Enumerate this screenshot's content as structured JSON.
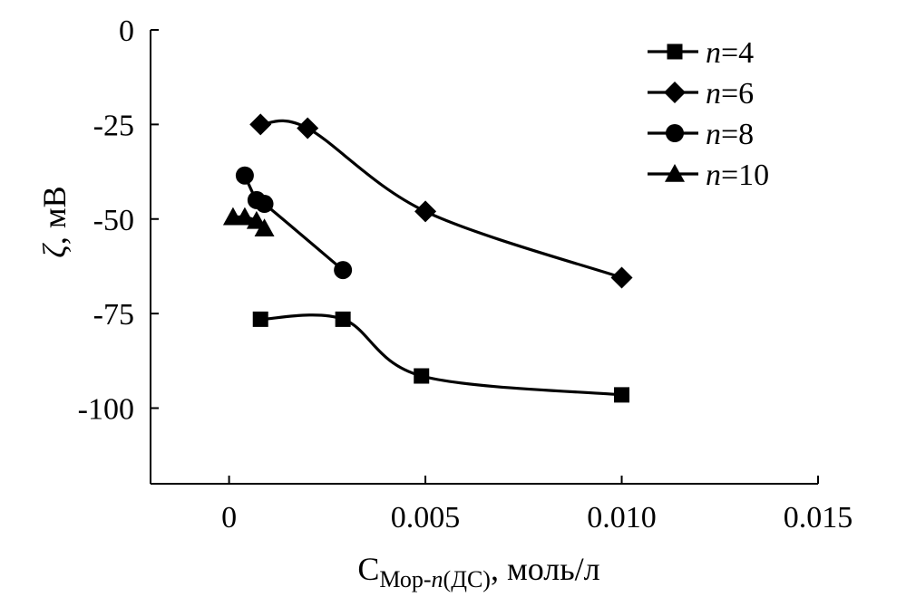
{
  "chart_data": {
    "type": "scatter",
    "title": "",
    "xlabel": {
      "main": "C",
      "sub": "Мор-",
      "sub_italic": "n",
      "sub_end": "(ДС)",
      "rest": ", моль/л"
    },
    "ylabel": {
      "symbol": "ζ",
      "rest": ", мВ"
    },
    "xlim": [
      -0.002,
      0.015
    ],
    "ylim": [
      -120,
      0
    ],
    "x_ticks": [
      0,
      0.005,
      0.01,
      0.015
    ],
    "x_tick_labels": [
      "0",
      "0.005",
      "0.010",
      "0.015"
    ],
    "y_ticks": [
      0,
      -25,
      -50,
      -75,
      -100
    ],
    "y_tick_labels": [
      "0",
      "-25",
      "-50",
      "-75",
      "-100"
    ],
    "grid": false,
    "legend_position": "top-right",
    "series": [
      {
        "name": {
          "prefix": "n",
          "suffix": "=4"
        },
        "marker": "square",
        "x": [
          0.0008,
          0.0029,
          0.0049,
          0.01
        ],
        "y": [
          -76.5,
          -76.5,
          -91.5,
          -96.5
        ]
      },
      {
        "name": {
          "prefix": "n",
          "suffix": "=6"
        },
        "marker": "diamond",
        "x": [
          0.0008,
          0.002,
          0.005,
          0.01
        ],
        "y": [
          -25,
          -26,
          -48,
          -65.5
        ]
      },
      {
        "name": {
          "prefix": "n",
          "suffix": "=8"
        },
        "marker": "circle",
        "x": [
          0.0004,
          0.0007,
          0.0009,
          0.0029
        ],
        "y": [
          -38.5,
          -45,
          -46,
          -63.5
        ]
      },
      {
        "name": {
          "prefix": "n",
          "suffix": "=10"
        },
        "marker": "triangle",
        "x": [
          0.0001,
          0.0004,
          0.0007,
          0.0009
        ],
        "y": [
          -49.5,
          -49.5,
          -50.5,
          -52.5
        ]
      }
    ]
  }
}
